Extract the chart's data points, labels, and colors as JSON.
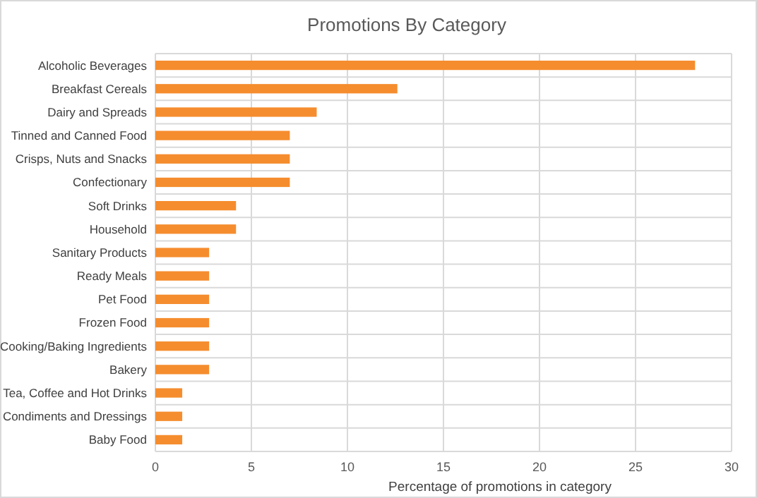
{
  "chart_data": {
    "type": "bar",
    "orientation": "horizontal",
    "title": "Promotions By Category",
    "xlabel": "Percentage of promotions in category",
    "categories": [
      "Alcoholic Beverages",
      "Breakfast Cereals",
      "Dairy and Spreads",
      "Tinned and Canned Food",
      "Crisps, Nuts and Snacks",
      "Confectionary",
      "Soft Drinks",
      "Household",
      "Sanitary Products",
      "Ready Meals",
      "Pet Food",
      "Frozen Food",
      "Cooking/Baking Ingredients",
      "Bakery",
      "Tea, Coffee and Hot Drinks",
      "Condiments and Dressings",
      "Baby Food"
    ],
    "values": [
      28.1,
      12.6,
      8.4,
      7.0,
      7.0,
      7.0,
      4.2,
      4.2,
      2.8,
      2.8,
      2.8,
      2.8,
      2.8,
      2.8,
      1.4,
      1.4,
      1.4
    ],
    "color": "#f58d2e",
    "xlim": [
      0,
      30
    ],
    "xticks": [
      0,
      5,
      10,
      15,
      20,
      25,
      30
    ],
    "grid": true
  }
}
